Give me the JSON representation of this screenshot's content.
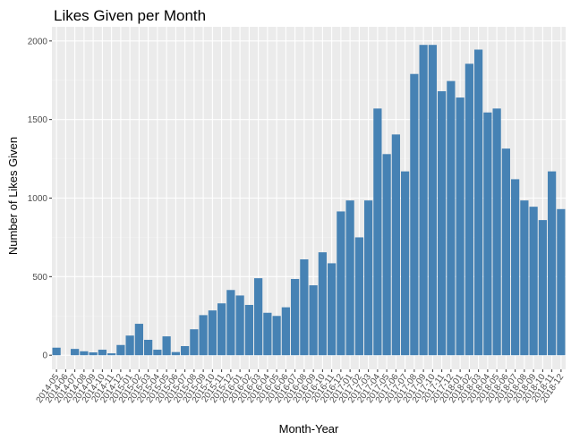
{
  "chart_data": {
    "type": "bar",
    "title": "Likes Given per Month",
    "xlabel": "Month-Year",
    "ylabel": "Number of Likes Given",
    "ylim": [
      -90,
      2090
    ],
    "yticks": [
      0,
      500,
      1000,
      1500,
      2000
    ],
    "grid": true,
    "legend": "none",
    "colors": {
      "bar": "#4682b4",
      "panel": "#ebebeb",
      "grid_major": "#ffffff",
      "grid_minor": "#f2f2f2",
      "tick": "#333333"
    },
    "categories": [
      "2014-05",
      "2014-06",
      "2014-07",
      "2014-08",
      "2014-09",
      "2014-10",
      "2014-11",
      "2014-12",
      "2015-01",
      "2015-02",
      "2015-03",
      "2015-04",
      "2015-05",
      "2015-06",
      "2015-07",
      "2015-08",
      "2015-09",
      "2015-10",
      "2015-11",
      "2015-12",
      "2016-01",
      "2016-02",
      "2016-03",
      "2016-04",
      "2016-05",
      "2016-06",
      "2016-07",
      "2016-08",
      "2016-09",
      "2016-10",
      "2016-11",
      "2016-12",
      "2017-01",
      "2017-02",
      "2017-03",
      "2017-04",
      "2017-05",
      "2017-06",
      "2017-07",
      "2017-08",
      "2017-09",
      "2017-10",
      "2017-11",
      "2017-12",
      "2018-01",
      "2018-02",
      "2018-03",
      "2018-04",
      "2018-05",
      "2018-06",
      "2018-07",
      "2018-08",
      "2018-09",
      "2018-10",
      "2018-11",
      "2018-12"
    ],
    "values": [
      48,
      0,
      40,
      25,
      18,
      35,
      12,
      65,
      125,
      200,
      98,
      35,
      120,
      20,
      58,
      165,
      255,
      285,
      330,
      415,
      380,
      320,
      490,
      270,
      250,
      305,
      485,
      610,
      445,
      655,
      585,
      915,
      985,
      750,
      985,
      1570,
      1280,
      1405,
      1170,
      1790,
      1975,
      1975,
      1680,
      1745,
      1640,
      1855,
      1945,
      1545,
      1570,
      1315,
      1120,
      985,
      945,
      860,
      1170,
      930
    ]
  }
}
